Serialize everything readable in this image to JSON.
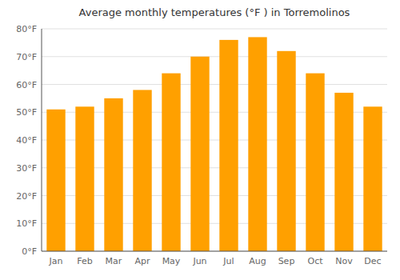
{
  "chart_data": {
    "type": "bar",
    "title": "Average monthly temperatures (°F ) in Torremolinos",
    "categories": [
      "Jan",
      "Feb",
      "Mar",
      "Apr",
      "May",
      "Jun",
      "Jul",
      "Aug",
      "Sep",
      "Oct",
      "Nov",
      "Dec"
    ],
    "values": [
      51,
      52,
      55,
      58,
      64,
      70,
      76,
      77,
      72,
      64,
      57,
      52
    ],
    "color": "#FFA000",
    "ylim": [
      0,
      80
    ],
    "yticks": [
      {
        "value": 0,
        "label": "0°F"
      },
      {
        "value": 10,
        "label": "10°F"
      },
      {
        "value": 20,
        "label": "20°F"
      },
      {
        "value": 30,
        "label": "30°F"
      },
      {
        "value": 40,
        "label": "40°F"
      },
      {
        "value": 50,
        "label": "50°F"
      },
      {
        "value": 60,
        "label": "60°F"
      },
      {
        "value": 70,
        "label": "70°F"
      },
      {
        "value": 80,
        "label": "80°F"
      }
    ],
    "grid": true
  }
}
